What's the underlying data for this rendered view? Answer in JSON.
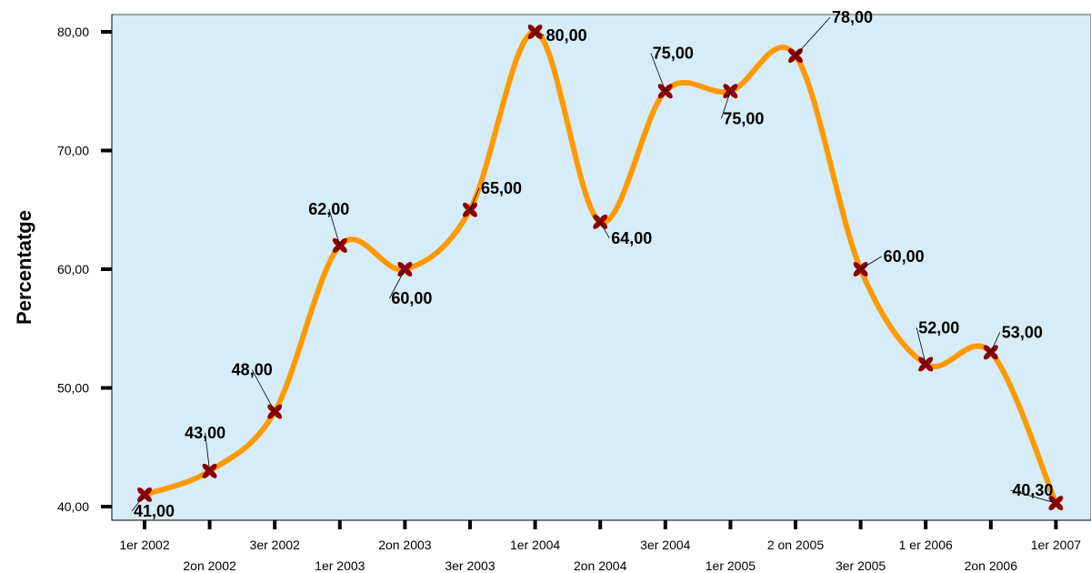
{
  "chart_data": {
    "type": "line",
    "title": "",
    "xlabel": "",
    "ylabel": "Percentatge",
    "ylim": [
      40,
      81.5
    ],
    "yticks": [
      "40,00",
      "50,00",
      "60,00",
      "70,00",
      "80,00"
    ],
    "ytick_values": [
      40,
      50,
      60,
      70,
      80
    ],
    "categories": [
      "1er 2002",
      "2on 2002",
      "3er 2002",
      "1er 2003",
      "2on 2003",
      "3er 2003",
      "1er 2004",
      "2on 2004",
      "3er 2004",
      "1er 2005",
      "2 on 2005",
      "3er 2005",
      "1 er 2006",
      "2on 2006",
      "1er 2007"
    ],
    "series": [
      {
        "values": [
          41,
          43,
          48,
          62,
          60,
          65,
          80,
          64,
          75,
          75,
          78,
          60,
          52,
          53,
          40.3
        ],
        "labels": [
          "41,00",
          "43,00",
          "48,00",
          "62,00",
          "60,00",
          "65,00",
          "80,00",
          "64,00",
          "75,00",
          "75,00",
          "78,00",
          "60,00",
          "52,00",
          "53,00",
          "40,30"
        ]
      }
    ],
    "grid": false,
    "legend": "none",
    "colors": {
      "plot_background": "#d6ecf8",
      "line": "#ff9900",
      "marker": "#8b0000",
      "axis": "#000000"
    }
  }
}
